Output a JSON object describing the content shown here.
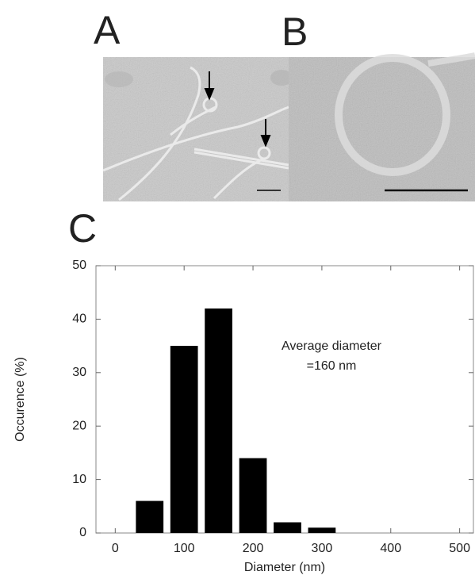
{
  "panel_labels": [
    "A",
    "B",
    "C"
  ],
  "chart_data": {
    "type": "histogram",
    "xlabel": "Diameter (nm)",
    "ylabel": "Occurence (%)",
    "annotation": [
      "Average diameter",
      "=160 nm"
    ],
    "bins": [
      25,
      75,
      125,
      175,
      225,
      275,
      325
    ],
    "values": [
      6,
      35,
      42,
      14,
      2,
      1
    ],
    "color": "#000000",
    "xlim": [
      -28,
      520
    ],
    "xticks": [
      0,
      100,
      200,
      300,
      400,
      500
    ],
    "ylim": [
      0,
      50
    ],
    "yticks": [
      0,
      10,
      20,
      30,
      40,
      50
    ]
  }
}
